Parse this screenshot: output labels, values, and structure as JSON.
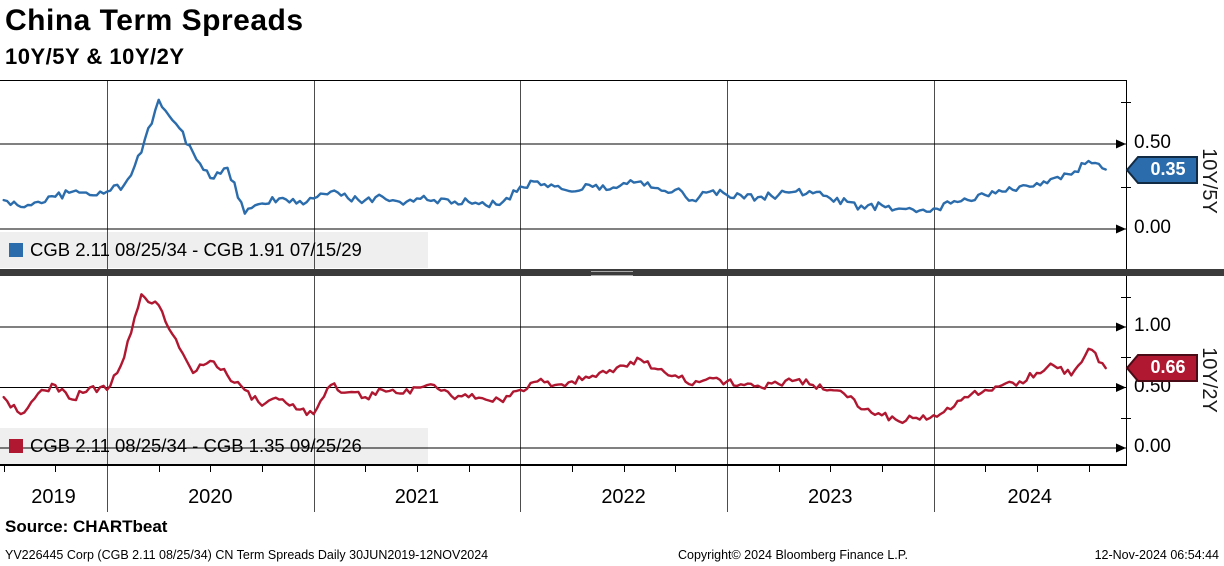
{
  "header": {
    "title": "China Term Spreads",
    "subtitle": "10Y/5Y & 10Y/2Y"
  },
  "colors": {
    "blue": "#2B6CAC",
    "blue_dark": "#122B45",
    "red": "#B01730",
    "red_dark": "#4A0A16",
    "grid": "#000000",
    "year_divider": "#4D4D4D",
    "legend_bg": "#EFEFEF",
    "separator": "#3B3B3B"
  },
  "x_axis": {
    "years": [
      "2019",
      "2020",
      "2021",
      "2022",
      "2023",
      "2024"
    ],
    "range_label": "30JUN2019-12NOV2024"
  },
  "panels": [
    {
      "axis_label": "10Y/5Y",
      "legend": "CGB 2.11 08/25/34 - CGB 1.91 07/15/29",
      "last_value": "0.35",
      "ticks": [
        {
          "label": "0.50",
          "value": 0.5
        },
        {
          "label": "0.00",
          "value": 0.0
        }
      ],
      "minor_ticks": [
        0.75,
        0.25
      ]
    },
    {
      "axis_label": "10Y/2Y",
      "legend": "CGB 2.11 08/25/34 - CGB 1.35 09/25/26",
      "last_value": "0.66",
      "ticks": [
        {
          "label": "1.00",
          "value": 1.0
        },
        {
          "label": "0.50",
          "value": 0.5
        },
        {
          "label": "0.00",
          "value": 0.0
        }
      ],
      "minor_ticks": [
        1.25,
        0.75,
        0.25
      ]
    }
  ],
  "chart_data": [
    {
      "type": "line",
      "name": "10Y/5Y spread (CGB 2.11 08/25/34 - CGB 1.91 07/15/29)",
      "panel": 0,
      "color": "#2B6CAC",
      "x_start": 2019.5,
      "x_step": 0.083333,
      "x_unit": "decimal year, monthly samples Jul2019-Nov2024",
      "ylim": [
        0.0,
        0.88
      ],
      "last_point": 0.35,
      "values": [
        0.17,
        0.13,
        0.16,
        0.19,
        0.22,
        0.2,
        0.22,
        0.26,
        0.45,
        0.76,
        0.62,
        0.45,
        0.3,
        0.36,
        0.09,
        0.15,
        0.18,
        0.15,
        0.18,
        0.22,
        0.18,
        0.17,
        0.19,
        0.16,
        0.18,
        0.17,
        0.15,
        0.16,
        0.14,
        0.16,
        0.25,
        0.28,
        0.25,
        0.22,
        0.26,
        0.23,
        0.27,
        0.28,
        0.24,
        0.23,
        0.17,
        0.22,
        0.2,
        0.18,
        0.19,
        0.2,
        0.22,
        0.21,
        0.18,
        0.16,
        0.12,
        0.14,
        0.12,
        0.1,
        0.12,
        0.15,
        0.17,
        0.2,
        0.22,
        0.25,
        0.27,
        0.3,
        0.32,
        0.4,
        0.35
      ]
    },
    {
      "type": "line",
      "name": "10Y/2Y spread (CGB 2.11 08/25/34 - CGB 1.35 09/25/26)",
      "panel": 1,
      "color": "#B01730",
      "x_start": 2019.5,
      "x_step": 0.083333,
      "x_unit": "decimal year, monthly samples Jul2019-Nov2024",
      "ylim": [
        0.0,
        1.42
      ],
      "last_point": 0.66,
      "values": [
        0.42,
        0.28,
        0.45,
        0.52,
        0.4,
        0.5,
        0.48,
        0.75,
        1.27,
        1.18,
        0.9,
        0.62,
        0.72,
        0.6,
        0.48,
        0.35,
        0.4,
        0.32,
        0.28,
        0.52,
        0.46,
        0.42,
        0.48,
        0.45,
        0.5,
        0.52,
        0.43,
        0.42,
        0.4,
        0.38,
        0.48,
        0.55,
        0.52,
        0.55,
        0.58,
        0.62,
        0.68,
        0.73,
        0.65,
        0.6,
        0.52,
        0.58,
        0.55,
        0.52,
        0.5,
        0.53,
        0.56,
        0.52,
        0.48,
        0.42,
        0.32,
        0.27,
        0.22,
        0.25,
        0.27,
        0.32,
        0.42,
        0.48,
        0.52,
        0.55,
        0.62,
        0.68,
        0.6,
        0.82,
        0.66
      ]
    }
  ],
  "footer": {
    "source": "Source: CHARTbeat",
    "left": "YV226445 Corp (CGB 2.11 08/25/34) CN Term Spreads  Daily 30JUN2019-12NOV2024",
    "center": "Copyright© 2024 Bloomberg Finance L.P.",
    "right": "12-Nov-2024 06:54:44"
  }
}
